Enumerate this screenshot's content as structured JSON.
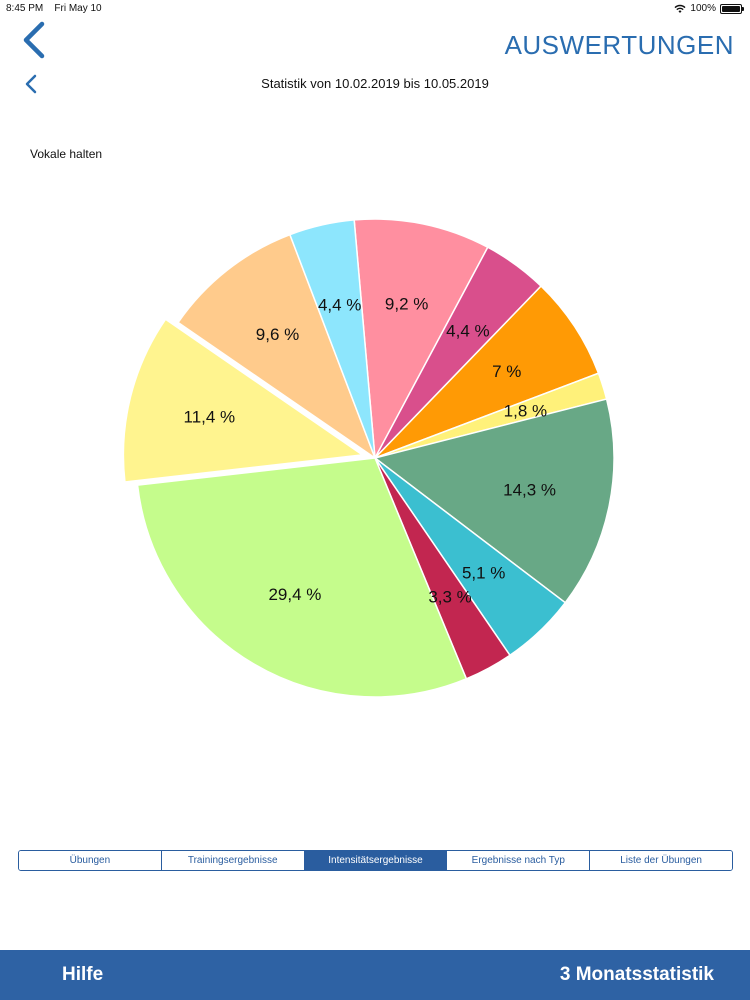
{
  "status_bar": {
    "time": "8:45 PM",
    "date": "Fri May 10",
    "battery": "100%",
    "battery_level": 1.0
  },
  "header": {
    "title": "AUSWERTUNGEN"
  },
  "subtitle": "Statistik von 10.02.2019 bis 10.05.2019",
  "chart_label": "Vokale halten",
  "chart_data": {
    "type": "pie",
    "slices": [
      {
        "label": "9,2  %",
        "value": 9.2,
        "color": "#ff8fa0"
      },
      {
        "label": "4,4  %",
        "value": 4.4,
        "color": "#d94f8c"
      },
      {
        "label": "7  %",
        "value": 7.0,
        "color": "#ff9a05"
      },
      {
        "label": "1,8  %",
        "value": 1.8,
        "color": "#fff17a"
      },
      {
        "label": "14,3  %",
        "value": 14.3,
        "color": "#68a886"
      },
      {
        "label": "5,1  %",
        "value": 5.1,
        "color": "#3bbfd0"
      },
      {
        "label": "3,3  %",
        "value": 3.3,
        "color": "#c22650"
      },
      {
        "label": "29,4  %",
        "value": 29.4,
        "color": "#c5fc8c"
      },
      {
        "label": "11,4  %",
        "value": 11.4,
        "color": "#fff48f",
        "exploded": true
      },
      {
        "label": "9,6  %",
        "value": 9.6,
        "color": "#ffcb8c"
      },
      {
        "label": "4,4  %",
        "value": 4.4,
        "color": "#8de6fd"
      }
    ]
  },
  "tabs": [
    {
      "label": "Übungen",
      "active": false
    },
    {
      "label": "Trainingsergebnisse",
      "active": false
    },
    {
      "label": "Intensitätsergebnisse",
      "active": true
    },
    {
      "label": "Ergebnisse nach Typ",
      "active": false
    },
    {
      "label": "Liste der Übungen",
      "active": false
    }
  ],
  "footer": {
    "help_label": "Hilfe",
    "stat_label": "3 Monatsstatistik"
  },
  "colors": {
    "accent": "#2a6db0",
    "footer_bg": "#2e62a4",
    "tab_active": "#2a5d9f"
  },
  "icons": {
    "back": "chevron-left-icon",
    "wifi": "wifi-icon",
    "battery": "battery-icon"
  }
}
